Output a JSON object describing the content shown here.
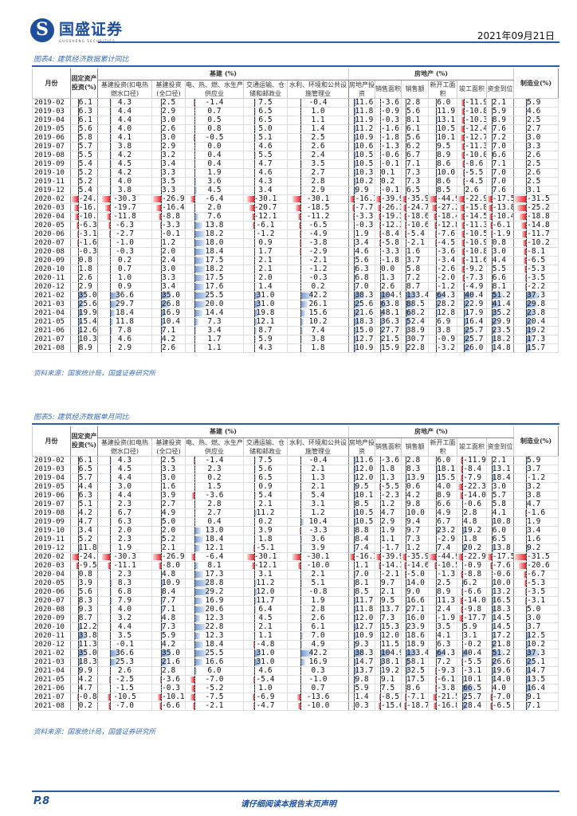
{
  "header": {
    "logo_cn": "国盛证券",
    "logo_en": "GUOSHENG SECURITIES",
    "date": "2021年09月21日"
  },
  "colors": {
    "brand": "#1d4f9c",
    "positive_bar": "#6d95cd",
    "negative_bar": "#e5252b"
  },
  "columns": {
    "month": "月份",
    "fixed_asset": "固定资产投资(%)",
    "infra_group": "基建 (%)",
    "infra": [
      "基建投资(扣电热燃水口径)",
      "基建投资(全口径)",
      "电、热、燃、水生产供应业",
      "交通运输、仓储和邮政业",
      "水利、环境和公共设施管理业"
    ],
    "re_group": "房地产 (%)",
    "re": [
      "房地产投资",
      "销售面积",
      "销售额",
      "新开工面积",
      "竣工面积",
      "资金到位"
    ],
    "mfg": "制造业(%)"
  },
  "table1": {
    "title": "图表4: 建筑经济数据累计同比",
    "source": "资料来源：国家统计局，国盛证券研究所",
    "rows": [
      [
        "2019-02",
        "6.1",
        "4.3",
        "2.5",
        "-1.4",
        "7.5",
        "-0.4",
        "11.6",
        "-3.6",
        "2.8",
        "6.0",
        "-11.9",
        "2.1",
        "5.9"
      ],
      [
        "2019-03",
        "6.3",
        "4.4",
        "2.9",
        "0.7",
        "6.5",
        "1.0",
        "11.8",
        "-0.9",
        "5.6",
        "11.9",
        "-10.8",
        "5.9",
        "4.6"
      ],
      [
        "2019-04",
        "6.1",
        "4.4",
        "3.0",
        "0.5",
        "6.5",
        "1.1",
        "11.9",
        "-0.3",
        "8.1",
        "13.1",
        "-10.3",
        "8.9",
        "2.5"
      ],
      [
        "2019-05",
        "5.6",
        "4.0",
        "2.6",
        "0.8",
        "5.0",
        "1.4",
        "11.2",
        "-1.6",
        "6.1",
        "10.5",
        "-12.4",
        "7.6",
        "2.7"
      ],
      [
        "2019-06",
        "5.8",
        "4.1",
        "3.0",
        "-0.5",
        "5.1",
        "2.5",
        "10.9",
        "-1.8",
        "5.6",
        "10.1",
        "-12.7",
        "7.2",
        "3.0"
      ],
      [
        "2019-07",
        "5.7",
        "3.8",
        "2.9",
        "0.0",
        "4.6",
        "2.6",
        "10.6",
        "-1.3",
        "6.2",
        "9.5",
        "-11.3",
        "7.0",
        "3.3"
      ],
      [
        "2019-08",
        "5.5",
        "4.2",
        "3.2",
        "0.4",
        "5.5",
        "2.4",
        "10.5",
        "-0.6",
        "6.7",
        "8.9",
        "-10.0",
        "6.6",
        "2.6"
      ],
      [
        "2019-09",
        "5.4",
        "4.5",
        "3.4",
        "0.4",
        "4.7",
        "3.5",
        "10.5",
        "-0.1",
        "7.1",
        "8.6",
        "-8.6",
        "7.1",
        "2.5"
      ],
      [
        "2019-10",
        "5.2",
        "4.2",
        "3.3",
        "1.9",
        "4.6",
        "2.7",
        "10.3",
        "0.1",
        "7.3",
        "10.0",
        "-5.5",
        "7.0",
        "2.6"
      ],
      [
        "2019-11",
        "5.2",
        "4.0",
        "3.5",
        "3.6",
        "4.3",
        "2.8",
        "10.2",
        "0.2",
        "7.3",
        "8.6",
        "-4.5",
        "7.0",
        "2.5"
      ],
      [
        "2019-12",
        "5.4",
        "3.8",
        "3.3",
        "4.5",
        "3.4",
        "2.9",
        "9.9",
        "-0.1",
        "6.5",
        "8.5",
        "2.6",
        "7.6",
        "3.1"
      ],
      [
        "2020-02",
        "-24.5",
        "-30.3",
        "-26.9",
        "-6.4",
        "-30.1",
        "-30.1",
        "-16.3",
        "-39.9",
        "-35.9",
        "-44.9",
        "-22.9",
        "-17.5",
        "-31.5"
      ],
      [
        "2020-03",
        "-16.1",
        "-19.7",
        "-16.4",
        "2.0",
        "-20.7",
        "-18.5",
        "-7.7",
        "-26.3",
        "-24.7",
        "-27.2",
        "-15.8",
        "-13.8",
        "-25.2"
      ],
      [
        "2020-04",
        "-10.3",
        "-11.8",
        "-8.8",
        "7.6",
        "-12.1",
        "-11.2",
        "-3.3",
        "-19.3",
        "-18.6",
        "-18.4",
        "-14.5",
        "-10.4",
        "-18.8"
      ],
      [
        "2020-05",
        "-6.3",
        "-6.3",
        "-3.3",
        "13.8",
        "-6.1",
        "-6.5",
        "-0.3",
        "-12.3",
        "-10.6",
        "-12.8",
        "-11.3",
        "-6.1",
        "-14.8"
      ],
      [
        "2020-06",
        "-3.1",
        "-2.7",
        "-0.1",
        "18.2",
        "-1.2",
        "-4.9",
        "1.9",
        "-8.4",
        "-5.4",
        "-7.6",
        "-10.5",
        "-1.9",
        "-11.7"
      ],
      [
        "2020-07",
        "-1.6",
        "-1.0",
        "1.2",
        "18.0",
        "0.9",
        "-3.8",
        "3.4",
        "-5.8",
        "-2.1",
        "-4.5",
        "-10.9",
        "0.8",
        "-10.2"
      ],
      [
        "2020-08",
        "-0.3",
        "-0.3",
        "2.0",
        "18.4",
        "1.7",
        "-2.9",
        "4.6",
        "-3.3",
        "1.6",
        "-3.6",
        "-10.8",
        "3.0",
        "-8.1"
      ],
      [
        "2020-09",
        "0.8",
        "0.2",
        "2.4",
        "17.5",
        "2.1",
        "-2.1",
        "5.6",
        "-1.8",
        "3.7",
        "-3.4",
        "-11.6",
        "4.4",
        "-6.5"
      ],
      [
        "2020-10",
        "1.8",
        "0.7",
        "3.0",
        "18.2",
        "2.1",
        "-1.2",
        "6.3",
        "0.0",
        "5.8",
        "-2.6",
        "-9.2",
        "5.5",
        "-5.3"
      ],
      [
        "2020-11",
        "2.6",
        "1.0",
        "3.3",
        "17.5",
        "2.0",
        "-0.3",
        "6.8",
        "1.3",
        "7.2",
        "-2.0",
        "-7.3",
        "6.6",
        "-3.5"
      ],
      [
        "2020-12",
        "2.9",
        "0.9",
        "3.4",
        "17.6",
        "1.4",
        "0.2",
        "7.0",
        "2.6",
        "8.7",
        "-1.2",
        "-4.9",
        "8.1",
        "-2.2"
      ],
      [
        "2021-02",
        "35.0",
        "36.6",
        "35.0",
        "25.5",
        "31.0",
        "42.2",
        "38.3",
        "104.9",
        "133.4",
        "64.3",
        "40.4",
        "51.2",
        "37.3"
      ],
      [
        "2021-03",
        "25.6",
        "29.7",
        "26.8",
        "20.0",
        "31.0",
        "26.1",
        "25.6",
        "63.8",
        "88.5",
        "28.2",
        "22.9",
        "41.4",
        "29.8"
      ],
      [
        "2021-04",
        "19.9",
        "18.4",
        "16.9",
        "14.4",
        "19.8",
        "15.6",
        "21.6",
        "48.1",
        "68.2",
        "12.8",
        "17.9",
        "35.2",
        "23.8"
      ],
      [
        "2021-05",
        "15.4",
        "11.8",
        "10.4",
        "7.3",
        "12.1",
        "10.2",
        "18.3",
        "36.3",
        "52.4",
        "6.9",
        "16.4",
        "29.9",
        "20.4"
      ],
      [
        "2021-06",
        "12.6",
        "7.8",
        "7.1",
        "3.4",
        "8.7",
        "7.4",
        "15.0",
        "27.7",
        "38.9",
        "3.8",
        "25.7",
        "23.5",
        "19.2"
      ],
      [
        "2021-07",
        "10.3",
        "4.6",
        "4.2",
        "1.7",
        "5.9",
        "3.8",
        "12.7",
        "21.5",
        "30.7",
        "-0.9",
        "25.7",
        "18.2",
        "17.3"
      ],
      [
        "2021-08",
        "8.9",
        "2.9",
        "2.6",
        "1.1",
        "4.3",
        "1.8",
        "10.9",
        "15.9",
        "22.8",
        "-3.2",
        "26.0",
        "14.8",
        "15.7"
      ]
    ]
  },
  "table2": {
    "title": "图表5: 建筑经济数据单月同比",
    "source": "资料来源：国家统计局，国盛证券研究所",
    "rows": [
      [
        "2019-02",
        "6.1",
        "4.3",
        "2.5",
        "-1.4",
        "7.5",
        "-0.4",
        "11.6",
        "-3.6",
        "2.8",
        "6.0",
        "-11.9",
        "2.1",
        "5.9"
      ],
      [
        "2019-03",
        "6.5",
        "4.5",
        "3.3",
        "2.3",
        "5.6",
        "2.1",
        "12.0",
        "1.8",
        "8.3",
        "18.1",
        "-8.4",
        "13.1",
        "3.7"
      ],
      [
        "2019-04",
        "5.7",
        "4.4",
        "3.0",
        "0.2",
        "6.5",
        "1.3",
        "12.0",
        "1.3",
        "13.9",
        "15.5",
        "-7.9",
        "18.4",
        "-1.2"
      ],
      [
        "2019-05",
        "4.4",
        "3.0",
        "1.6",
        "1.5",
        "0.9",
        "2.1",
        "9.5",
        "-5.5",
        "0.6",
        "4.0",
        "-22.3",
        "3.0",
        "3.2"
      ],
      [
        "2019-06",
        "6.3",
        "4.4",
        "3.9",
        "-3.6",
        "5.4",
        "5.4",
        "10.1",
        "-2.3",
        "4.2",
        "8.9",
        "-14.0",
        "5.7",
        "3.8"
      ],
      [
        "2019-07",
        "5.1",
        "2.3",
        "2.7",
        "2.8",
        "2.1",
        "3.1",
        "8.5",
        "1.2",
        "9.8",
        "6.6",
        "-0.6",
        "5.8",
        "4.7"
      ],
      [
        "2019-08",
        "4.2",
        "6.7",
        "4.9",
        "2.7",
        "11.2",
        "1.2",
        "10.5",
        "4.7",
        "10.0",
        "4.9",
        "2.8",
        "4.1",
        "-1.6"
      ],
      [
        "2019-09",
        "4.7",
        "6.3",
        "5.0",
        "0.4",
        "0.2",
        "10.4",
        "10.5",
        "2.9",
        "9.4",
        "6.7",
        "4.8",
        "10.8",
        "1.9"
      ],
      [
        "2019-10",
        "3.4",
        "2.0",
        "2.0",
        "13.0",
        "3.9",
        "-3.3",
        "8.8",
        "1.9",
        "9.7",
        "23.2",
        "19.2",
        "6.0",
        "3.4"
      ],
      [
        "2019-11",
        "5.2",
        "2.3",
        "5.2",
        "18.4",
        "1.8",
        "3.6",
        "8.4",
        "1.1",
        "7.3",
        "-2.9",
        "1.8",
        "6.5",
        "1.6"
      ],
      [
        "2019-12",
        "11.8",
        "1.9",
        "2.1",
        "12.1",
        "-5.1",
        "3.9",
        "7.4",
        "-1.7",
        "1.2",
        "7.4",
        "20.2",
        "13.8",
        "9.2"
      ],
      [
        "2020-02",
        "-24.5",
        "-30.3",
        "-26.9",
        "-6.4",
        "-30.1",
        "-30.1",
        "-16.3",
        "-39.9",
        "-35.9",
        "-44.9",
        "-22.9",
        "-17.5",
        "-31.5"
      ],
      [
        "2020-03",
        "-9.5",
        "-11.1",
        "-8.0",
        "8.1",
        "-12.1",
        "-10.0",
        "1.1",
        "-14.1",
        "-14.6",
        "-10.5",
        "-0.9",
        "-7.6",
        "-20.6"
      ],
      [
        "2020-04",
        "0.8",
        "2.3",
        "4.8",
        "17.3",
        "3.1",
        "2.1",
        "7.0",
        "-2.1",
        "-5.0",
        "-1.3",
        "-8.8",
        "-0.6",
        "-6.7"
      ],
      [
        "2020-05",
        "3.9",
        "8.3",
        "10.9",
        "28.8",
        "11.2",
        "5.1",
        "8.1",
        "9.7",
        "14.0",
        "2.5",
        "6.2",
        "10.0",
        "-5.3"
      ],
      [
        "2020-06",
        "5.6",
        "6.8",
        "8.4",
        "29.2",
        "12.0",
        "-0.8",
        "8.5",
        "2.1",
        "9.0",
        "8.9",
        "-6.6",
        "13.2",
        "-3.5"
      ],
      [
        "2020-07",
        "8.3",
        "7.9",
        "7.7",
        "16.9",
        "11.7",
        "1.9",
        "11.7",
        "9.5",
        "16.6",
        "11.3",
        "-14.0",
        "16.5",
        "-3.1"
      ],
      [
        "2020-08",
        "9.3",
        "4.0",
        "7.1",
        "20.6",
        "6.4",
        "2.8",
        "11.8",
        "13.7",
        "27.1",
        "2.4",
        "-9.8",
        "18.3",
        "5.0"
      ],
      [
        "2020-09",
        "8.7",
        "3.2",
        "4.8",
        "12.3",
        "4.5",
        "2.6",
        "12.0",
        "7.3",
        "16.0",
        "-1.9",
        "-17.7",
        "14.5",
        "3.0"
      ],
      [
        "2020-10",
        "12.2",
        "4.4",
        "7.3",
        "22.8",
        "2.1",
        "6.1",
        "12.7",
        "15.3",
        "23.9",
        "3.5",
        "5.9",
        "14.5",
        "3.7"
      ],
      [
        "2020-11",
        "33.8",
        "3.5",
        "5.9",
        "12.3",
        "1.1",
        "7.0",
        "10.9",
        "12.0",
        "18.6",
        "4.1",
        "3.1",
        "17.2",
        "12.5"
      ],
      [
        "2020-12",
        "11.3",
        "-0.1",
        "4.2",
        "18.4",
        "-4.8",
        "4.9",
        "9.3",
        "11.5",
        "18.9",
        "6.3",
        "-0.2",
        "21.8",
        "10.2"
      ],
      [
        "2021-02",
        "35.0",
        "36.6",
        "35.0",
        "25.5",
        "31.0",
        "42.2",
        "38.3",
        "104.9",
        "133.4",
        "64.3",
        "40.4",
        "51.2",
        "37.3"
      ],
      [
        "2021-03",
        "18.3",
        "25.3",
        "21.6",
        "16.6",
        "31.0",
        "16.9",
        "14.7",
        "38.1",
        "58.1",
        "7.2",
        "-5.5",
        "26.6",
        "25.1"
      ],
      [
        "2021-04",
        "9.9",
        "2.6",
        "2.8",
        "6.0",
        "4.6",
        "0.3",
        "13.7",
        "19.2",
        "32.5",
        "-9.3",
        "-3.1",
        "19.6",
        "14.7"
      ],
      [
        "2021-05",
        "4.2",
        "-2.5",
        "-3.6",
        "-7.0",
        "-5.4",
        "-1.0",
        "9.8",
        "9.1",
        "17.5",
        "-6.1",
        "10.1",
        "14.0",
        "13.5"
      ],
      [
        "2021-06",
        "4.7",
        "-1.5",
        "-0.3",
        "-5.2",
        "1.0",
        "0.7",
        "5.9",
        "7.5",
        "8.6",
        "-3.8",
        "66.5",
        "4.0",
        "16.4"
      ],
      [
        "2021-07",
        "-0.8",
        "-10.5",
        "-10.1",
        "-7.5",
        "-6.9",
        "-13.6",
        "1.4",
        "-8.5",
        "-7.1",
        "-21.5",
        "25.7",
        "-7.0",
        "9.1"
      ],
      [
        "2021-08",
        "0.2",
        "-7.0",
        "-6.6",
        "-2.1",
        "-4.7",
        "-10.0",
        "0.3",
        "-15.6",
        "-18.7",
        "-16.8",
        "28.4",
        "-6.5",
        "7.1"
      ]
    ]
  },
  "footer": {
    "page": "P.8",
    "disclaimer": "请仔细阅读本报告末页声明"
  }
}
